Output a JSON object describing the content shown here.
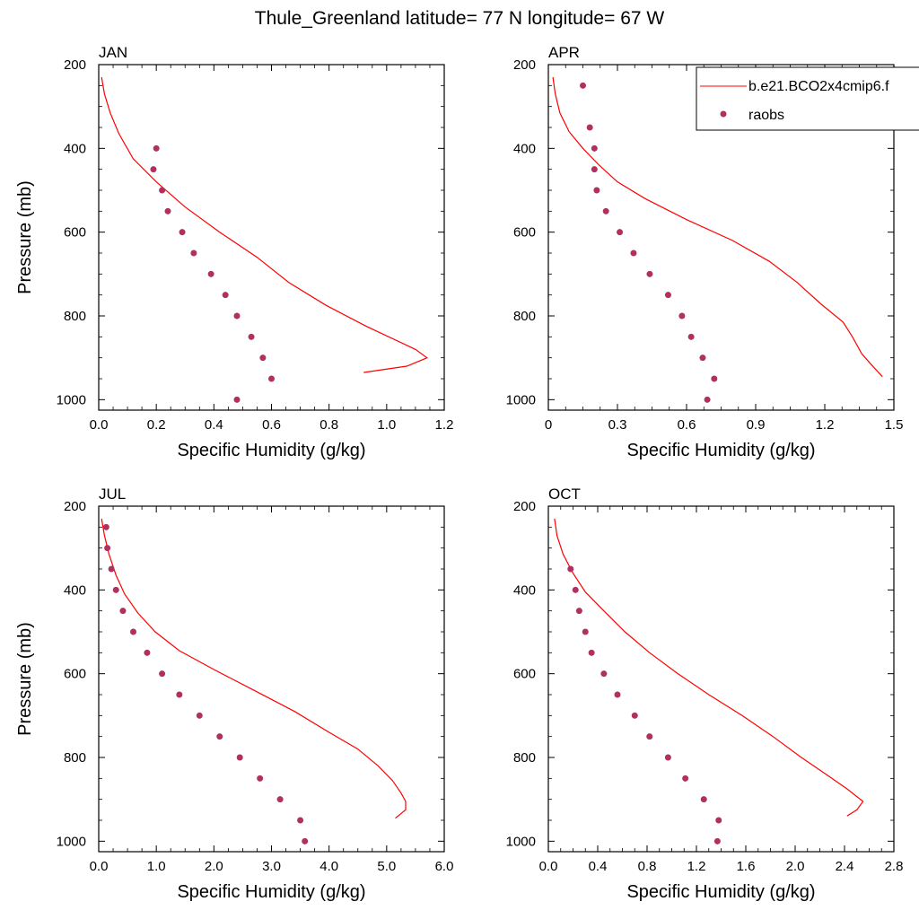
{
  "figure": {
    "title": "Thule_Greenland  latitude= 77 N longitude= 67 W"
  },
  "legend": {
    "model_label": "b.e21.BCO2x4cmip6.f",
    "obs_label": "raobs"
  },
  "colors": {
    "model": "#ff0000",
    "obs": "#b03060",
    "axis": "#000000"
  },
  "chart_data": [
    {
      "type": "line",
      "title": "JAN",
      "xlabel": "Specific Humidity (g/kg)",
      "ylabel": "Pressure (mb)",
      "xlim": [
        0,
        1.2
      ],
      "ylim": [
        1025,
        200
      ],
      "y_reversed": true,
      "xticks": [
        "0.0",
        "0.2",
        "0.4",
        "0.6",
        "0.8",
        "1.0",
        "1.2"
      ],
      "yticks": [
        "200",
        "400",
        "600",
        "800",
        "1000"
      ],
      "series": [
        {
          "name": "b.e21.BCO2x4cmip6.f",
          "kind": "line",
          "x": [
            0.01,
            0.02,
            0.04,
            0.07,
            0.12,
            0.2,
            0.3,
            0.42,
            0.55,
            0.66,
            0.79,
            0.93,
            1.1,
            1.14,
            1.07,
            0.92
          ],
          "y": [
            230,
            270,
            315,
            365,
            425,
            480,
            540,
            600,
            660,
            720,
            775,
            825,
            880,
            900,
            920,
            935
          ]
        },
        {
          "name": "raobs",
          "kind": "scatter",
          "x": [
            0.2,
            0.19,
            0.22,
            0.24,
            0.29,
            0.33,
            0.39,
            0.44,
            0.48,
            0.53,
            0.57,
            0.6,
            0.48
          ],
          "y": [
            400,
            450,
            500,
            550,
            600,
            650,
            700,
            750,
            800,
            850,
            900,
            950,
            1000
          ]
        }
      ]
    },
    {
      "type": "line",
      "title": "APR",
      "xlabel": "Specific Humidity (g/kg)",
      "ylabel": "",
      "xlim": [
        0,
        1.5
      ],
      "ylim": [
        1025,
        200
      ],
      "y_reversed": true,
      "xticks": [
        "0",
        "0.3",
        "0.6",
        "0.9",
        "1.2",
        "1.5"
      ],
      "yticks": [
        "200",
        "400",
        "600",
        "800",
        "1000"
      ],
      "series": [
        {
          "name": "b.e21.BCO2x4cmip6.f",
          "kind": "line",
          "x": [
            0.02,
            0.03,
            0.05,
            0.09,
            0.15,
            0.22,
            0.3,
            0.42,
            0.6,
            0.8,
            0.96,
            1.08,
            1.18,
            1.28,
            1.32,
            1.36,
            1.4,
            1.45
          ],
          "y": [
            230,
            270,
            315,
            360,
            400,
            440,
            480,
            520,
            570,
            620,
            670,
            720,
            770,
            815,
            850,
            890,
            915,
            945
          ]
        },
        {
          "name": "raobs",
          "kind": "scatter",
          "x": [
            0.15,
            0.18,
            0.2,
            0.2,
            0.21,
            0.25,
            0.31,
            0.37,
            0.44,
            0.52,
            0.58,
            0.62,
            0.67,
            0.72,
            0.69
          ],
          "y": [
            250,
            350,
            400,
            450,
            500,
            550,
            600,
            650,
            700,
            750,
            800,
            850,
            900,
            950,
            1000
          ]
        }
      ]
    },
    {
      "type": "line",
      "title": "JUL",
      "xlabel": "Specific Humidity (g/kg)",
      "ylabel": "Pressure (mb)",
      "xlim": [
        0,
        6
      ],
      "ylim": [
        1025,
        200
      ],
      "y_reversed": true,
      "xticks": [
        "0.0",
        "1.0",
        "2.0",
        "3.0",
        "4.0",
        "5.0",
        "6.0"
      ],
      "yticks": [
        "200",
        "400",
        "600",
        "800",
        "1000"
      ],
      "series": [
        {
          "name": "b.e21.BCO2x4cmip6.f",
          "kind": "line",
          "x": [
            0.05,
            0.1,
            0.18,
            0.3,
            0.45,
            0.68,
            0.98,
            1.4,
            2.0,
            2.7,
            3.4,
            4.0,
            4.5,
            4.85,
            5.1,
            5.25,
            5.33,
            5.33,
            5.15
          ],
          "y": [
            230,
            270,
            315,
            365,
            410,
            455,
            500,
            545,
            590,
            640,
            690,
            740,
            780,
            820,
            855,
            885,
            905,
            925,
            945
          ]
        },
        {
          "name": "raobs",
          "kind": "scatter",
          "x": [
            0.13,
            0.15,
            0.22,
            0.3,
            0.42,
            0.6,
            0.84,
            1.1,
            1.4,
            1.75,
            2.1,
            2.45,
            2.8,
            3.15,
            3.5,
            3.58
          ],
          "y": [
            250,
            300,
            350,
            400,
            450,
            500,
            550,
            600,
            650,
            700,
            750,
            800,
            850,
            900,
            950,
            1000
          ]
        }
      ]
    },
    {
      "type": "line",
      "title": "OCT",
      "xlabel": "Specific Humidity (g/kg)",
      "ylabel": "",
      "xlim": [
        0,
        2.8
      ],
      "ylim": [
        1025,
        200
      ],
      "y_reversed": true,
      "xticks": [
        "0.0",
        "0.4",
        "0.8",
        "1.2",
        "1.6",
        "2.0",
        "2.4",
        "2.8"
      ],
      "yticks": [
        "200",
        "400",
        "600",
        "800",
        "1000"
      ],
      "series": [
        {
          "name": "b.e21.BCO2x4cmip6.f",
          "kind": "line",
          "x": [
            0.05,
            0.07,
            0.12,
            0.2,
            0.3,
            0.45,
            0.62,
            0.82,
            1.05,
            1.3,
            1.57,
            1.82,
            2.05,
            2.25,
            2.42,
            2.55,
            2.5,
            2.42
          ],
          "y": [
            230,
            270,
            315,
            360,
            405,
            450,
            500,
            550,
            600,
            650,
            700,
            750,
            800,
            840,
            875,
            905,
            925,
            940
          ]
        },
        {
          "name": "raobs",
          "kind": "scatter",
          "x": [
            0.18,
            0.22,
            0.25,
            0.3,
            0.35,
            0.45,
            0.56,
            0.7,
            0.82,
            0.97,
            1.11,
            1.26,
            1.38,
            1.37
          ],
          "y": [
            350,
            400,
            450,
            500,
            550,
            600,
            650,
            700,
            750,
            800,
            850,
            900,
            950,
            1000
          ]
        }
      ]
    }
  ]
}
